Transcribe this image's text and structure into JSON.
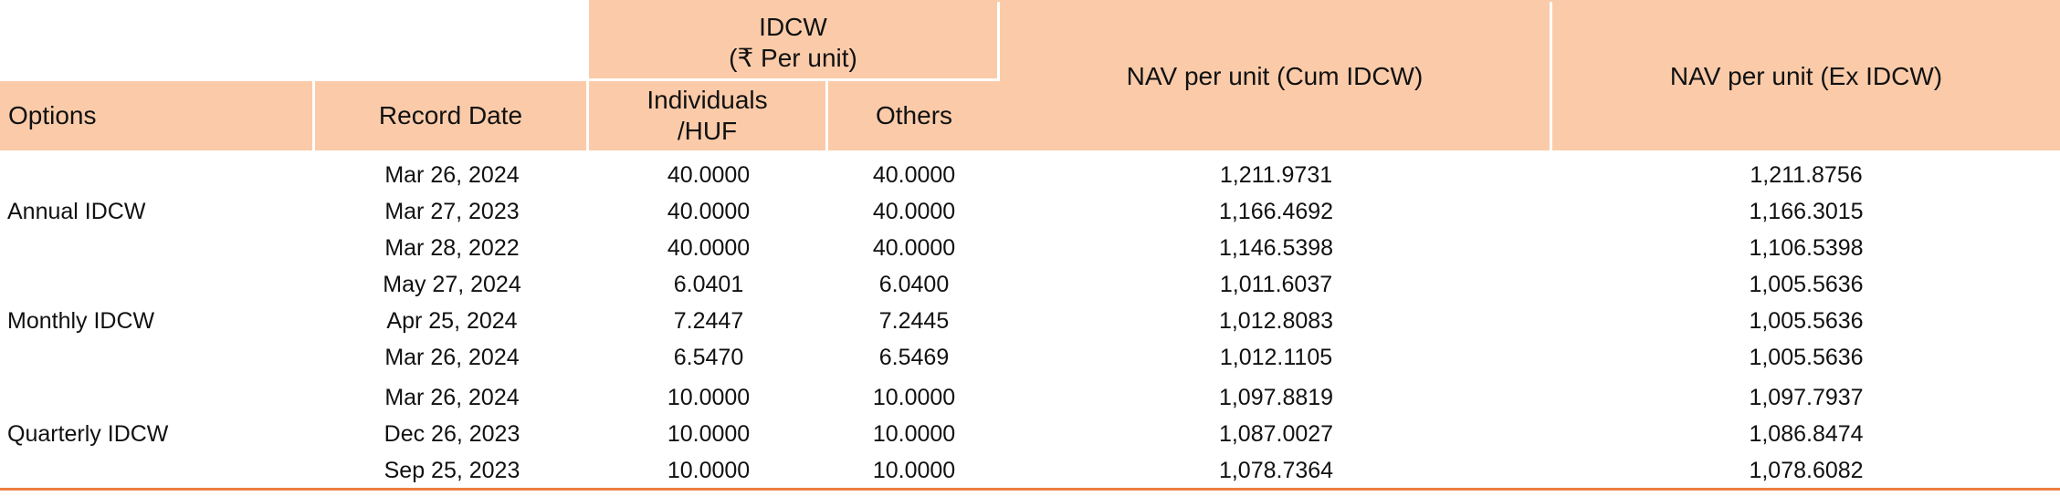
{
  "colors": {
    "header_bg": "#fbcba9",
    "bottom_rule": "#ef7d42",
    "text": "#111111"
  },
  "header": {
    "idcw_title": "IDCW",
    "idcw_subtitle": "(₹ Per unit)",
    "options": "Options",
    "record_date": "Record Date",
    "individuals": "Individuals",
    "individuals_suffix": "/HUF",
    "others": "Others",
    "nav_cum": "NAV per unit (Cum IDCW)",
    "nav_ex": "NAV per unit (Ex IDCW)"
  },
  "groups": [
    {
      "option": "Annual IDCW",
      "rows": [
        {
          "date": "Mar 26, 2024",
          "individuals": "40.0000",
          "others": "40.0000",
          "nav_cum": "1,211.9731",
          "nav_ex": "1,211.8756"
        },
        {
          "date": "Mar 27, 2023",
          "individuals": "40.0000",
          "others": "40.0000",
          "nav_cum": "1,166.4692",
          "nav_ex": "1,166.3015"
        },
        {
          "date": "Mar 28, 2022",
          "individuals": "40.0000",
          "others": "40.0000",
          "nav_cum": "1,146.5398",
          "nav_ex": "1,106.5398"
        }
      ]
    },
    {
      "option": "Monthly IDCW",
      "rows": [
        {
          "date": "May 27, 2024",
          "individuals": "6.0401",
          "others": "6.0400",
          "nav_cum": "1,011.6037",
          "nav_ex": "1,005.5636"
        },
        {
          "date": "Apr 25, 2024",
          "individuals": "7.2447",
          "others": "7.2445",
          "nav_cum": "1,012.8083",
          "nav_ex": "1,005.5636"
        },
        {
          "date": "Mar 26, 2024",
          "individuals": "6.5470",
          "others": "6.5469",
          "nav_cum": "1,012.1105",
          "nav_ex": "1,005.5636"
        }
      ]
    },
    {
      "option": "Quarterly IDCW",
      "rows": [
        {
          "date": "Mar 26, 2024",
          "individuals": "10.0000",
          "others": "10.0000",
          "nav_cum": "1,097.8819",
          "nav_ex": "1,097.7937"
        },
        {
          "date": "Dec 26, 2023",
          "individuals": "10.0000",
          "others": "10.0000",
          "nav_cum": "1,087.0027",
          "nav_ex": "1,086.8474"
        },
        {
          "date": "Sep 25, 2023",
          "individuals": "10.0000",
          "others": "10.0000",
          "nav_cum": "1,078.7364",
          "nav_ex": "1,078.6082"
        }
      ]
    }
  ]
}
